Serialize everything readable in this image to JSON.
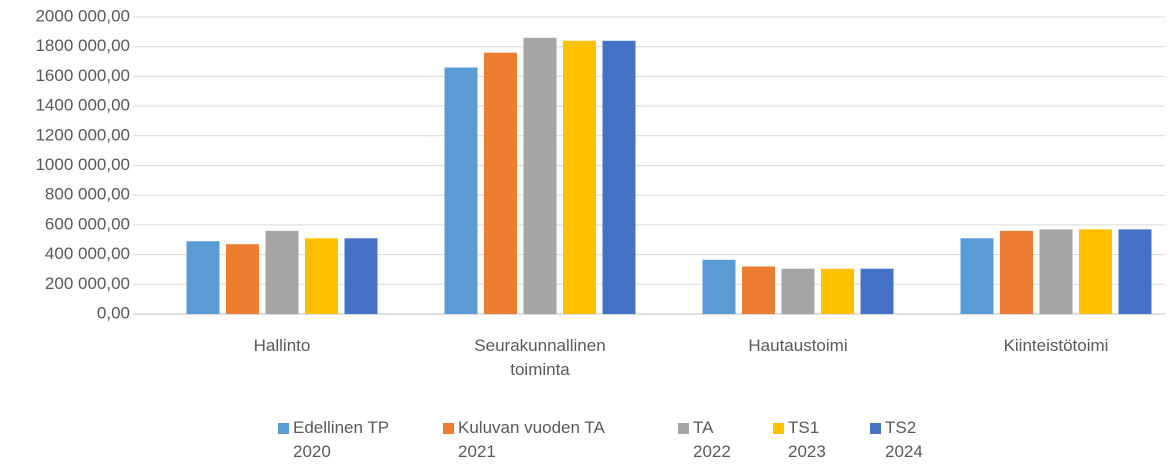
{
  "chart_data": {
    "type": "bar",
    "categories": [
      "Hallinto",
      "Seurakunnallinen\ntoiminta",
      "Hautaustoimi",
      "Kiinteistötoimi"
    ],
    "series": [
      {
        "name": "Edellinen TP\n2020",
        "color": "#5b9bd5",
        "values": [
          490000,
          1660000,
          365000,
          510000
        ]
      },
      {
        "name": "Kuluvan vuoden TA\n2021",
        "color": "#ed7d31",
        "values": [
          470000,
          1760000,
          320000,
          560000
        ]
      },
      {
        "name": "TA\n2022",
        "color": "#a5a5a5",
        "values": [
          560000,
          1860000,
          305000,
          570000
        ]
      },
      {
        "name": "TS1\n2023",
        "color": "#ffc000",
        "values": [
          510000,
          1840000,
          305000,
          570000
        ]
      },
      {
        "name": "TS2\n2024",
        "color": "#4472c4",
        "values": [
          510000,
          1840000,
          305000,
          570000
        ]
      }
    ],
    "ylim": [
      0,
      2000000
    ],
    "yticks": [
      {
        "value": 0,
        "label": "0,00"
      },
      {
        "value": 200000,
        "label": "200 000,00"
      },
      {
        "value": 400000,
        "label": "400 000,00"
      },
      {
        "value": 600000,
        "label": "600 000,00"
      },
      {
        "value": 800000,
        "label": "800 000,00"
      },
      {
        "value": 1000000,
        "label": "1000 000,00"
      },
      {
        "value": 1200000,
        "label": "1200 000,00"
      },
      {
        "value": 1400000,
        "label": "1400 000,00"
      },
      {
        "value": 1600000,
        "label": "1600 000,00"
      },
      {
        "value": 1800000,
        "label": "1800 000,00"
      },
      {
        "value": 2000000,
        "label": "2000 000,00"
      }
    ],
    "grid": true,
    "legend": "bottom"
  }
}
